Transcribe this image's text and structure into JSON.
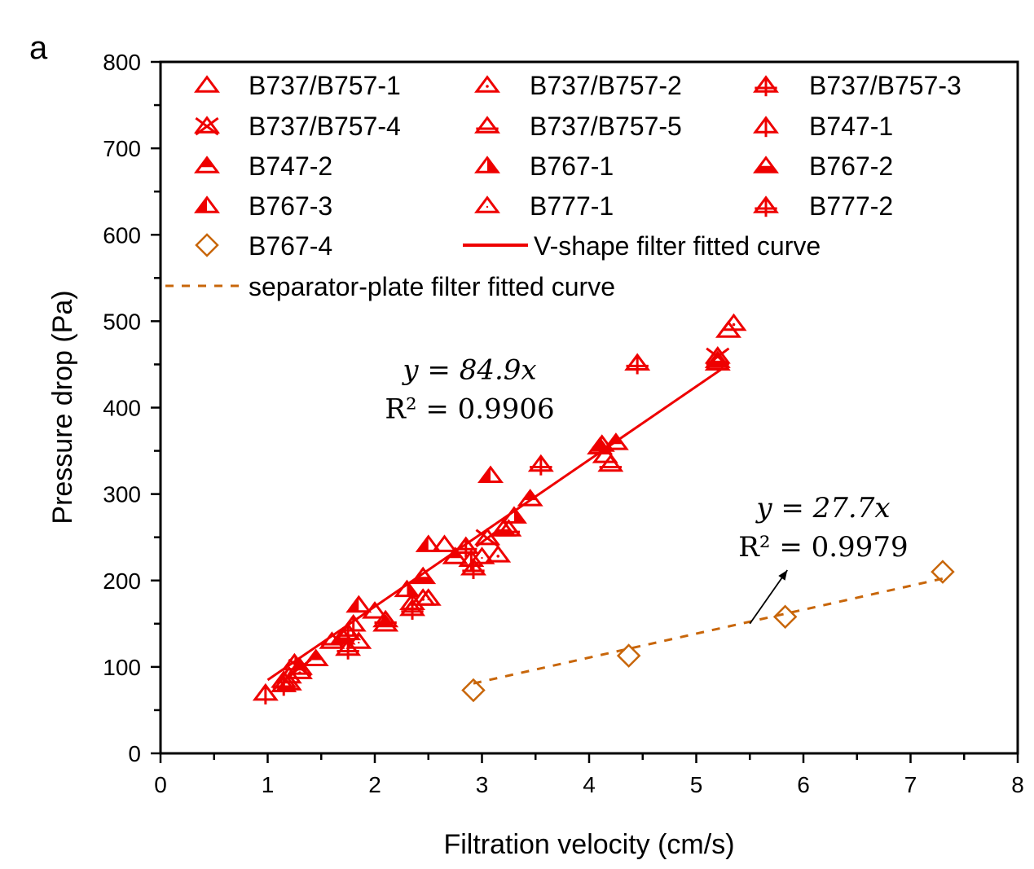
{
  "panel_label": "a",
  "chart_data": {
    "type": "scatter",
    "title": "",
    "xlabel": "Filtration velocity (cm/s)",
    "ylabel": "Pressure drop (Pa)",
    "xlim": [
      0,
      8
    ],
    "ylim": [
      0,
      800
    ],
    "xticks": [
      0,
      1,
      2,
      3,
      4,
      5,
      6,
      7,
      8
    ],
    "yticks": [
      0,
      100,
      200,
      300,
      400,
      500,
      600,
      700,
      800
    ],
    "grid": false,
    "legend_position": "top",
    "colors": {
      "v_shape": "#ee0000",
      "separator": "#c8660a",
      "annotation": "#000000"
    },
    "series": [
      {
        "name": "B737/B757-1",
        "marker": "triangle-open",
        "group": "v_shape",
        "points": [
          [
            1.2,
            90
          ],
          [
            2.0,
            165
          ],
          [
            2.65,
            242
          ],
          [
            4.15,
            345
          ],
          [
            5.3,
            490
          ]
        ]
      },
      {
        "name": "B737/B757-2",
        "marker": "triangle-dot",
        "group": "v_shape",
        "points": [
          [
            1.3,
            95
          ],
          [
            2.45,
            180
          ],
          [
            3.15,
            230
          ],
          [
            5.35,
            498
          ]
        ]
      },
      {
        "name": "B737/B757-3",
        "marker": "triangle-cross",
        "group": "v_shape",
        "points": [
          [
            1.75,
            140
          ],
          [
            2.85,
            240
          ],
          [
            3.55,
            335
          ],
          [
            4.45,
            452
          ]
        ]
      },
      {
        "name": "B737/B757-4",
        "marker": "triangle-x",
        "group": "v_shape",
        "points": [
          [
            1.3,
            100
          ],
          [
            3.05,
            250
          ],
          [
            5.2,
            460
          ]
        ]
      },
      {
        "name": "B737/B757-5",
        "marker": "triangle-bar",
        "group": "v_shape",
        "points": [
          [
            1.6,
            130
          ],
          [
            2.1,
            155
          ],
          [
            3.25,
            260
          ],
          [
            4.2,
            335
          ],
          [
            5.2,
            452
          ]
        ]
      },
      {
        "name": "B747-1",
        "marker": "triangle-vbar",
        "group": "v_shape",
        "points": [
          [
            0.98,
            70
          ],
          [
            1.15,
            85
          ],
          [
            1.8,
            150
          ],
          [
            2.35,
            175
          ],
          [
            2.9,
            225
          ]
        ]
      },
      {
        "name": "B747-2",
        "marker": "triangle-top-filled",
        "group": "v_shape",
        "points": [
          [
            1.45,
            110
          ],
          [
            2.1,
            150
          ],
          [
            2.75,
            228
          ],
          [
            3.45,
            295
          ],
          [
            4.25,
            360
          ]
        ]
      },
      {
        "name": "B767-1",
        "marker": "triangle-right-filled",
        "group": "v_shape",
        "points": [
          [
            1.25,
            105
          ],
          [
            2.3,
            190
          ],
          [
            3.3,
            275
          ],
          [
            4.1,
            355
          ]
        ]
      },
      {
        "name": "B767-2",
        "marker": "triangle-bottom-filled",
        "group": "v_shape",
        "points": [
          [
            1.7,
            135
          ],
          [
            2.45,
            205
          ],
          [
            3.2,
            260
          ],
          [
            5.2,
            455
          ]
        ]
      },
      {
        "name": "B767-3",
        "marker": "triangle-left-filled",
        "group": "v_shape",
        "points": [
          [
            1.85,
            172
          ],
          [
            2.5,
            242
          ],
          [
            3.08,
            322
          ],
          [
            4.12,
            358
          ]
        ]
      },
      {
        "name": "B777-1",
        "marker": "triangle-small-dot",
        "group": "v_shape",
        "points": [
          [
            1.2,
            82
          ],
          [
            1.85,
            130
          ],
          [
            2.5,
            180
          ],
          [
            3.0,
            228
          ]
        ]
      },
      {
        "name": "B777-2",
        "marker": "triangle-plus",
        "group": "v_shape",
        "points": [
          [
            1.15,
            80
          ],
          [
            1.75,
            122
          ],
          [
            2.35,
            168
          ],
          [
            2.92,
            215
          ]
        ]
      },
      {
        "name": "B767-4",
        "marker": "diamond-open",
        "group": "separator",
        "points": [
          [
            2.92,
            73
          ],
          [
            4.37,
            113
          ],
          [
            5.83,
            158
          ],
          [
            7.3,
            210
          ]
        ]
      }
    ],
    "fits": [
      {
        "name": "V-shape filter fitted curve",
        "style": "solid",
        "group": "v_shape",
        "slope": 84.9,
        "r2": 0.9906,
        "x_range": [
          1.0,
          5.25
        ],
        "equation_label": "y = 84.9x",
        "r2_label": "R² = 0.9906"
      },
      {
        "name": "separator-plate filter fitted curve",
        "style": "dashed",
        "group": "separator",
        "slope": 27.7,
        "r2": 0.9979,
        "x_range": [
          2.92,
          7.3
        ],
        "equation_label": "y = 27.7x",
        "r2_label": "R² = 0.9979"
      }
    ],
    "legend": [
      {
        "label": "B737/B757-1",
        "marker": "triangle-open"
      },
      {
        "label": "B737/B757-2",
        "marker": "triangle-dot"
      },
      {
        "label": "B737/B757-3",
        "marker": "triangle-cross"
      },
      {
        "label": "B737/B757-4",
        "marker": "triangle-x"
      },
      {
        "label": "B737/B757-5",
        "marker": "triangle-bar"
      },
      {
        "label": "B747-1",
        "marker": "triangle-vbar"
      },
      {
        "label": "B747-2",
        "marker": "triangle-top-filled"
      },
      {
        "label": "B767-1",
        "marker": "triangle-right-filled"
      },
      {
        "label": "B767-2",
        "marker": "triangle-bottom-filled"
      },
      {
        "label": "B767-3",
        "marker": "triangle-left-filled"
      },
      {
        "label": "B777-1",
        "marker": "triangle-small-dot"
      },
      {
        "label": "B777-2",
        "marker": "triangle-plus"
      },
      {
        "label": "B767-4",
        "marker": "diamond-open"
      },
      {
        "label": "V-shape filter fitted curve",
        "marker": "line-solid"
      },
      {
        "label": "separator-plate filter fitted curve",
        "marker": "line-dashed"
      }
    ],
    "annotations": [
      {
        "type": "equation",
        "fit": 0,
        "anchor_data": [
          3.0,
          450
        ]
      },
      {
        "type": "equation",
        "fit": 1,
        "anchor_data": [
          6.3,
          290
        ]
      },
      {
        "type": "arrow",
        "from_data": [
          5.5,
          150
        ],
        "to_data": [
          5.85,
          212
        ]
      }
    ]
  }
}
